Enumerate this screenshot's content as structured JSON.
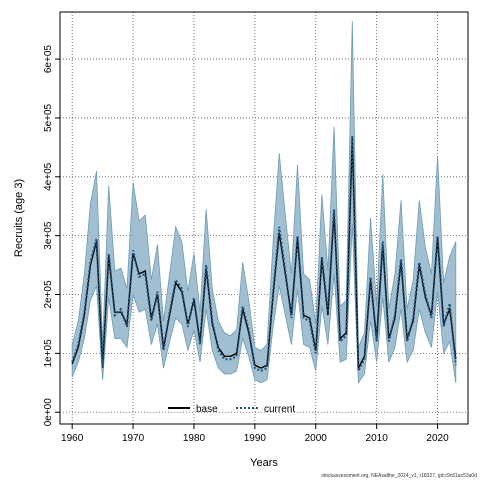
{
  "chart_data": {
    "type": "line",
    "title": "",
    "xlabel": "Years",
    "ylabel": "Recruits (age 3)",
    "xlim": [
      1958,
      2025
    ],
    "ylim": [
      -20000,
      680000
    ],
    "x_ticks": [
      1960,
      1970,
      1980,
      1990,
      2000,
      2010,
      2020
    ],
    "x_tick_labels": [
      "1960",
      "1970",
      "1980",
      "1990",
      "2000",
      "2010",
      "2020"
    ],
    "y_ticks": [
      0,
      100000,
      200000,
      300000,
      400000,
      500000,
      600000
    ],
    "y_tick_labels": [
      "0e+00",
      "1e+05",
      "2e+05",
      "3e+05",
      "4e+05",
      "5e+05",
      "6e+05"
    ],
    "grid": true,
    "legend_position": "bottom-center",
    "band_color": "#9bbccd",
    "band_edge_color": "#6d9bb3",
    "x": [
      1960,
      1961,
      1962,
      1963,
      1964,
      1965,
      1966,
      1967,
      1968,
      1969,
      1970,
      1971,
      1972,
      1973,
      1974,
      1975,
      1976,
      1977,
      1978,
      1979,
      1980,
      1981,
      1982,
      1983,
      1984,
      1985,
      1986,
      1987,
      1988,
      1989,
      1990,
      1991,
      1992,
      1993,
      1994,
      1995,
      1996,
      1997,
      1998,
      1999,
      2000,
      2001,
      2002,
      2003,
      2004,
      2005,
      2006,
      2007,
      2008,
      2009,
      2010,
      2011,
      2012,
      2013,
      2014,
      2015,
      2016,
      2017,
      2018,
      2019,
      2020,
      2021,
      2022,
      2023
    ],
    "series": [
      {
        "name": "base",
        "line_style": "solid",
        "color": "#000000",
        "values": [
          82000,
          110000,
          165000,
          250000,
          290000,
          80000,
          265000,
          170000,
          170000,
          150000,
          270000,
          235000,
          240000,
          160000,
          200000,
          110000,
          165000,
          220000,
          205000,
          150000,
          190000,
          120000,
          245000,
          150000,
          110000,
          95000,
          95000,
          100000,
          175000,
          135000,
          80000,
          75000,
          80000,
          200000,
          305000,
          235000,
          165000,
          295000,
          165000,
          160000,
          105000,
          260000,
          165000,
          340000,
          125000,
          135000,
          465000,
          75000,
          95000,
          225000,
          125000,
          285000,
          125000,
          160000,
          255000,
          125000,
          155000,
          250000,
          195000,
          165000,
          295000,
          150000,
          175000,
          90000
        ]
      },
      {
        "name": "current",
        "line_style": "dotted",
        "color": "#1f4e79",
        "values": [
          85000,
          115000,
          170000,
          255000,
          295000,
          75000,
          270000,
          165000,
          175000,
          145000,
          275000,
          230000,
          235000,
          155000,
          205000,
          105000,
          170000,
          225000,
          210000,
          145000,
          195000,
          115000,
          250000,
          155000,
          105000,
          90000,
          90000,
          95000,
          180000,
          140000,
          75000,
          70000,
          75000,
          205000,
          315000,
          240000,
          160000,
          300000,
          160000,
          155000,
          100000,
          265000,
          170000,
          345000,
          120000,
          130000,
          470000,
          70000,
          90000,
          230000,
          120000,
          290000,
          120000,
          165000,
          260000,
          120000,
          160000,
          255000,
          200000,
          160000,
          300000,
          145000,
          185000,
          80000
        ]
      }
    ],
    "band": {
      "lower": [
        60000,
        85000,
        125000,
        190000,
        215000,
        55000,
        195000,
        125000,
        125000,
        110000,
        200000,
        170000,
        175000,
        115000,
        150000,
        75000,
        120000,
        160000,
        150000,
        105000,
        140000,
        85000,
        175000,
        105000,
        75000,
        65000,
        65000,
        70000,
        125000,
        95000,
        55000,
        50000,
        55000,
        145000,
        215000,
        165000,
        115000,
        210000,
        115000,
        110000,
        70000,
        180000,
        115000,
        235000,
        85000,
        90000,
        320000,
        50000,
        65000,
        155000,
        85000,
        195000,
        85000,
        110000,
        175000,
        85000,
        105000,
        175000,
        135000,
        110000,
        205000,
        100000,
        120000,
        50000
      ],
      "upper": [
        115000,
        155000,
        235000,
        355000,
        410000,
        115000,
        385000,
        240000,
        245000,
        210000,
        390000,
        325000,
        335000,
        225000,
        285000,
        155000,
        235000,
        315000,
        290000,
        205000,
        270000,
        170000,
        345000,
        210000,
        155000,
        135000,
        130000,
        140000,
        255000,
        190000,
        110000,
        105000,
        115000,
        290000,
        440000,
        335000,
        235000,
        420000,
        235000,
        225000,
        150000,
        370000,
        240000,
        485000,
        180000,
        190000,
        665000,
        110000,
        135000,
        330000,
        180000,
        405000,
        175000,
        235000,
        360000,
        175000,
        225000,
        360000,
        280000,
        235000,
        435000,
        220000,
        265000,
        290000
      ]
    }
  },
  "footer": {
    "text": "stockassessment.org, NEAsalthe_2024_v1, r18327, git:c9c61ac53a0d"
  }
}
